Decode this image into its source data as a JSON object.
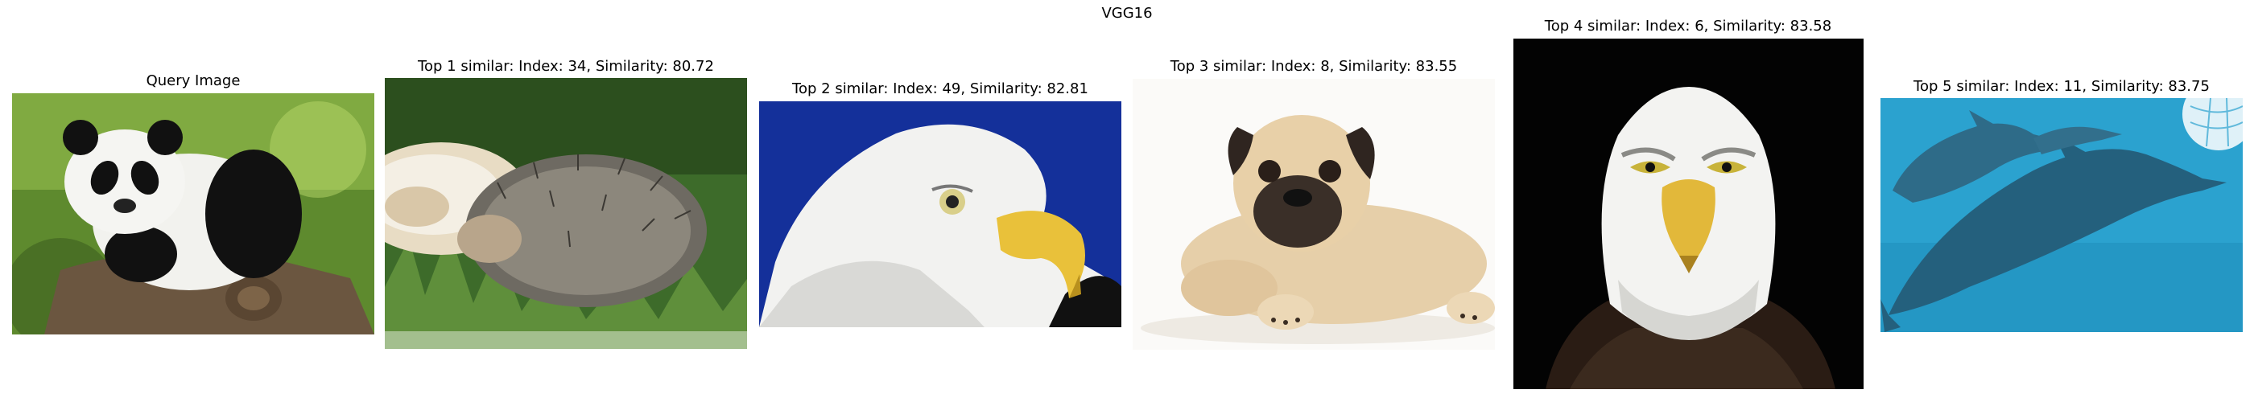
{
  "figure": {
    "title": "VGG16",
    "panels": [
      {
        "title": "Query Image",
        "subject": "panda photo"
      },
      {
        "title": "Top 1 similar: Index: 34, Similarity: 80.72",
        "subject": "hedgehog photo"
      },
      {
        "title": "Top 2 similar: Index: 49, Similarity: 82.81",
        "subject": "bald eagle profile photo"
      },
      {
        "title": "Top 3 similar: Index: 8, Similarity: 83.55",
        "subject": "pug puppy photo"
      },
      {
        "title": "Top 4 similar: Index: 6, Similarity: 83.58",
        "subject": "bald eagle front photo"
      },
      {
        "title": "Top 5 similar: Index: 11, Similarity: 83.75",
        "subject": "dolphins photo"
      }
    ]
  }
}
